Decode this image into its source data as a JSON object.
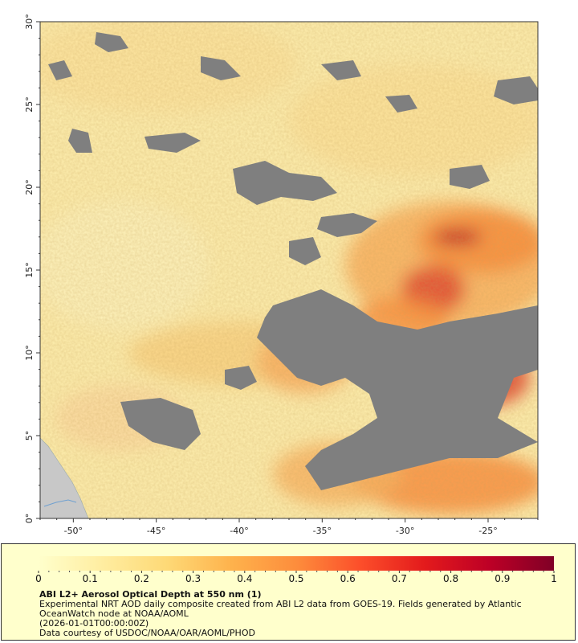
{
  "map": {
    "lat_range": [
      0,
      30
    ],
    "lon_range": [
      -52,
      -22
    ],
    "lat_ticks": [
      {
        "value": 0,
        "label": "0°"
      },
      {
        "value": 5,
        "label": "5°"
      },
      {
        "value": 10,
        "label": "10°"
      },
      {
        "value": 15,
        "label": "15°"
      },
      {
        "value": 20,
        "label": "20°"
      },
      {
        "value": 25,
        "label": "25°"
      },
      {
        "value": 30,
        "label": "30°"
      }
    ],
    "lon_ticks": [
      {
        "value": -50,
        "label": "-50°"
      },
      {
        "value": -45,
        "label": "-45°"
      },
      {
        "value": -40,
        "label": "-40°"
      },
      {
        "value": -35,
        "label": "-35°"
      },
      {
        "value": -30,
        "label": "-30°"
      },
      {
        "value": -25,
        "label": "-25°"
      }
    ],
    "no_data_color": "#7f7f7f",
    "land_color": "#c8c8c8"
  },
  "colorbar": {
    "min": 0,
    "max": 1,
    "labels": [
      "0",
      "0.1",
      "0.2",
      "0.3",
      "0.4",
      "0.5",
      "0.6",
      "0.7",
      "0.8",
      "0.9",
      "1"
    ],
    "colors": [
      "#ffffcc",
      "#ffeda0",
      "#fed976",
      "#feb24c",
      "#fd8d3c",
      "#fc4e2a",
      "#e31a1c",
      "#bd0026",
      "#800026"
    ]
  },
  "legend": {
    "title": "ABI L2+ Aerosol Optical Depth at 550 nm (1)",
    "line1": "Experimental NRT AOD daily composite created from ABI L2 data from GOES-19. Fields generated by Atlantic",
    "line2": "OceanWatch node at NOAA/AOML",
    "line3": "(2026-01-01T00:00:00Z)",
    "line4": "Data courtesy of USDOC/NOAA/OAR/AOML/PHOD"
  }
}
